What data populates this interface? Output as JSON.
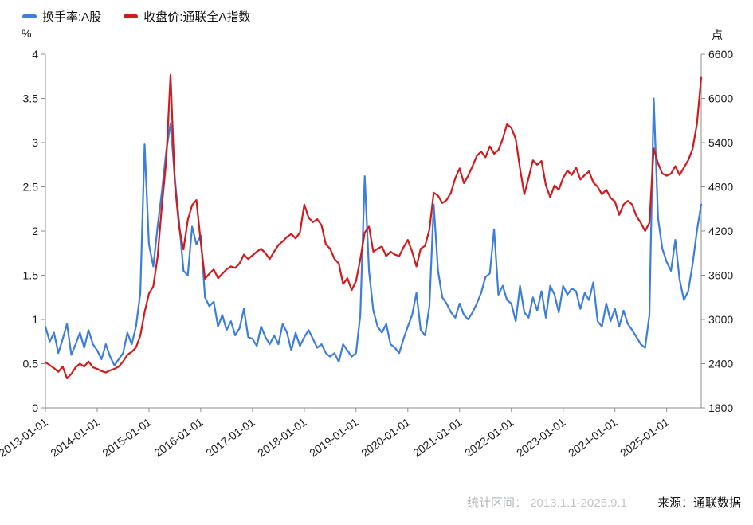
{
  "chart_data": {
    "type": "line",
    "title": "",
    "grid": false,
    "legend_position": "top-left",
    "left_axis": {
      "unit": "%",
      "range": [
        0,
        4
      ],
      "ticks": [
        0,
        0.5,
        1,
        1.5,
        2,
        2.5,
        3,
        3.5,
        4
      ]
    },
    "right_axis": {
      "unit": "点",
      "range": [
        1800,
        6600
      ],
      "ticks": [
        1800,
        2400,
        3000,
        3600,
        4200,
        4800,
        5400,
        6000,
        6600
      ]
    },
    "x_axis": {
      "start_year": 2013,
      "step_months": 1,
      "range_years": [
        2013,
        2025.667
      ],
      "tick_labels": [
        "2013-01-01",
        "2014-01-01",
        "2015-01-01",
        "2016-01-01",
        "2017-01-01",
        "2018-01-01",
        "2019-01-01",
        "2020-01-01",
        "2021-01-01",
        "2022-01-01",
        "2023-01-01",
        "2024-01-01",
        "2025-01-01"
      ]
    },
    "series": [
      {
        "name": "换手率:A股",
        "axis": "left",
        "color": "#3d7ddc",
        "values": [
          0.92,
          0.75,
          0.85,
          0.62,
          0.78,
          0.95,
          0.6,
          0.72,
          0.85,
          0.68,
          0.88,
          0.72,
          0.65,
          0.55,
          0.72,
          0.58,
          0.48,
          0.55,
          0.62,
          0.85,
          0.72,
          0.92,
          1.3,
          2.98,
          1.85,
          1.6,
          2.05,
          2.45,
          2.9,
          3.22,
          2.6,
          2.1,
          1.55,
          1.5,
          2.05,
          1.85,
          1.95,
          1.25,
          1.15,
          1.2,
          0.92,
          1.05,
          0.88,
          0.98,
          0.82,
          0.9,
          1.12,
          0.8,
          0.78,
          0.7,
          0.92,
          0.8,
          0.72,
          0.82,
          0.72,
          0.95,
          0.85,
          0.65,
          0.85,
          0.7,
          0.8,
          0.88,
          0.78,
          0.68,
          0.72,
          0.62,
          0.58,
          0.62,
          0.52,
          0.72,
          0.65,
          0.58,
          0.62,
          1.05,
          2.62,
          1.55,
          1.1,
          0.92,
          0.85,
          0.95,
          0.72,
          0.68,
          0.62,
          0.78,
          0.92,
          1.05,
          1.3,
          0.88,
          0.82,
          1.15,
          2.3,
          1.55,
          1.25,
          1.18,
          1.08,
          1.02,
          1.18,
          1.05,
          1.0,
          1.08,
          1.18,
          1.3,
          1.48,
          1.52,
          2.02,
          1.28,
          1.38,
          1.22,
          1.18,
          0.98,
          1.38,
          1.08,
          1.02,
          1.25,
          1.1,
          1.32,
          1.02,
          1.38,
          1.28,
          1.08,
          1.38,
          1.28,
          1.35,
          1.32,
          1.12,
          1.3,
          1.22,
          1.42,
          0.98,
          0.92,
          1.18,
          0.98,
          1.12,
          0.92,
          1.1,
          0.95,
          0.88,
          0.8,
          0.72,
          0.68,
          1.05,
          3.5,
          2.15,
          1.8,
          1.65,
          1.55,
          1.9,
          1.45,
          1.22,
          1.32,
          1.62,
          2.0,
          2.3
        ]
      },
      {
        "name": "收盘价:通联全A指数",
        "axis": "right",
        "color": "#d11a1c",
        "values": [
          2420,
          2380,
          2340,
          2290,
          2360,
          2200,
          2260,
          2350,
          2400,
          2360,
          2430,
          2350,
          2330,
          2300,
          2280,
          2310,
          2330,
          2360,
          2430,
          2520,
          2560,
          2620,
          2780,
          3100,
          3350,
          3450,
          3850,
          4550,
          5150,
          6320,
          4850,
          4250,
          3950,
          4350,
          4550,
          4620,
          4050,
          3550,
          3620,
          3680,
          3560,
          3620,
          3680,
          3720,
          3700,
          3760,
          3880,
          3820,
          3870,
          3920,
          3960,
          3900,
          3820,
          3920,
          4010,
          4060,
          4120,
          4160,
          4100,
          4180,
          4560,
          4380,
          4320,
          4360,
          4280,
          4020,
          3960,
          3820,
          3760,
          3480,
          3560,
          3400,
          3520,
          3820,
          4180,
          4260,
          3920,
          3960,
          3990,
          3860,
          3920,
          3880,
          3860,
          3980,
          4080,
          3920,
          3720,
          3960,
          4000,
          4220,
          4720,
          4680,
          4580,
          4620,
          4720,
          4920,
          5050,
          4850,
          4950,
          5080,
          5220,
          5280,
          5200,
          5350,
          5250,
          5300,
          5450,
          5650,
          5600,
          5450,
          5050,
          4700,
          4920,
          5160,
          5100,
          5150,
          4820,
          4660,
          4820,
          4760,
          4920,
          5020,
          4960,
          5060,
          4900,
          4960,
          5010,
          4860,
          4800,
          4700,
          4760,
          4650,
          4600,
          4420,
          4560,
          4610,
          4560,
          4400,
          4310,
          4200,
          4310,
          5320,
          5120,
          4980,
          4950,
          4980,
          5080,
          4960,
          5060,
          5160,
          5310,
          5650,
          6280
        ]
      }
    ]
  },
  "footer": {
    "stat_label": "统计区间：",
    "stat_value": "2013.1.1-2025.9.1",
    "source_label": "来源：",
    "source_value": "通联数据"
  }
}
